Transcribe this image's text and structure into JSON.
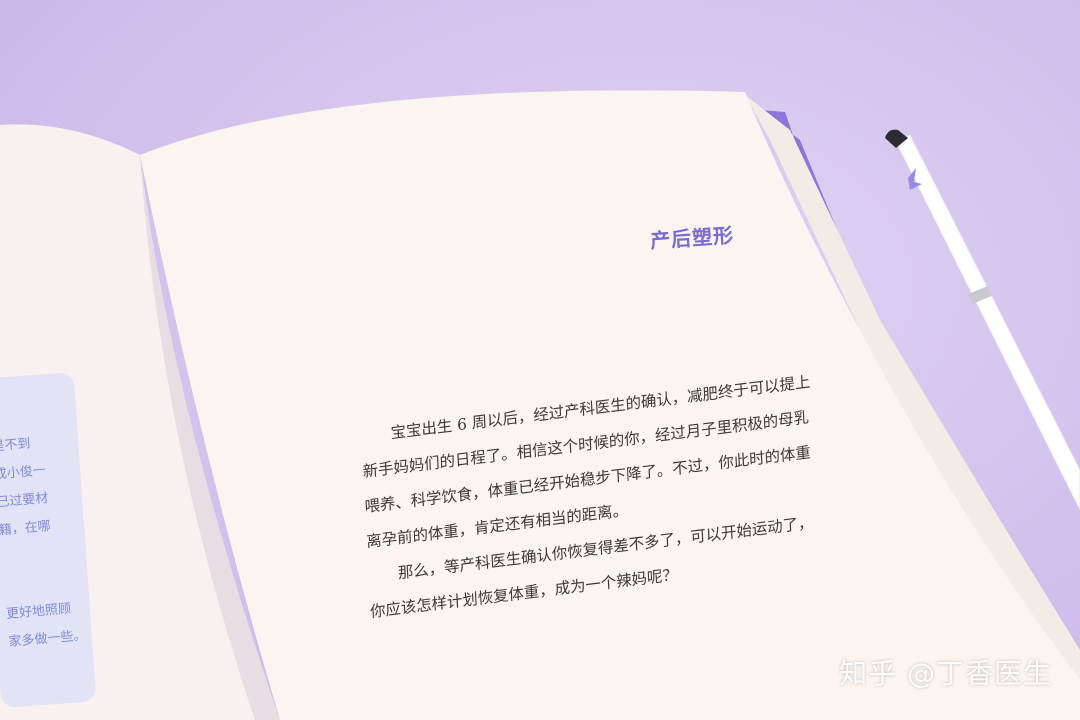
{
  "book": {
    "heading": "产后塑形",
    "paragraphs": [
      "宝宝出生 6 周以后，经过产科医生的确认，减肥终于可以提上",
      "新手妈妈们的日程了。相信这个时候的你，经过月子里积极的母乳",
      "喂养、科学饮食，体重已经开始稳步下降了。不过，你此时的体重",
      "离孕前的体重，肯定还有相当的距离。",
      "那么，等产科医生确认你恢复得差不多了，可以开始运动了，",
      "你应该怎样计划恢复体重，成为一个辣妈呢？"
    ],
    "left_page_fragments": [
      "是不到",
      "成小俊一",
      "己过要材",
      "籍，在哪",
      "更好地照顾",
      "家多做一些。"
    ]
  },
  "watermark": "知乎 @丁香医生",
  "colors": {
    "background": "#d7c7ee",
    "heading": "#7a6bd0",
    "book_edge": "#8a77d8",
    "pen": "#ffffff"
  }
}
